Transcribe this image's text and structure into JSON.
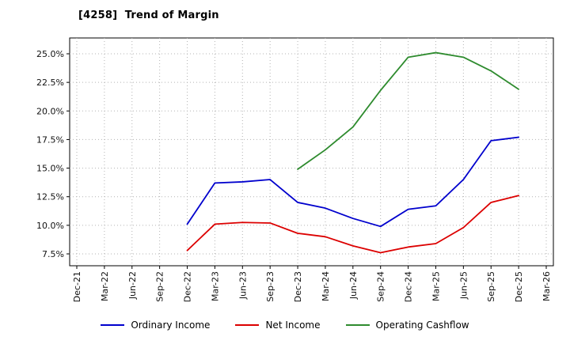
{
  "chart_data": {
    "type": "line",
    "title": "[4258]  Trend of Margin",
    "categories": [
      "Dec-21",
      "Mar-22",
      "Jun-22",
      "Sep-22",
      "Dec-22",
      "Mar-23",
      "Jun-23",
      "Sep-23",
      "Dec-23",
      "Mar-24",
      "Jun-24",
      "Sep-24",
      "Dec-24",
      "Mar-25",
      "Jun-25",
      "Sep-25",
      "Dec-25",
      "Mar-26"
    ],
    "y_ticks": [
      "7.5%",
      "10.0%",
      "12.5%",
      "15.0%",
      "17.5%",
      "20.0%",
      "22.5%",
      "25.0%"
    ],
    "y_tick_values": [
      7.5,
      10.0,
      12.5,
      15.0,
      17.5,
      20.0,
      22.5,
      25.0
    ],
    "ylim": [
      7.5,
      25.0
    ],
    "grid": true,
    "grid_style": "dotted",
    "legend_position": "bottom",
    "series": [
      {
        "name": "Ordinary Income",
        "color": "#0000cd",
        "x_start_index": 4,
        "values": [
          10.1,
          13.7,
          13.8,
          14.0,
          12.0,
          11.5,
          10.6,
          9.9,
          11.4,
          11.7,
          14.0,
          17.4,
          17.7
        ]
      },
      {
        "name": "Net Income",
        "color": "#dc0000",
        "x_start_index": 4,
        "values": [
          7.8,
          10.1,
          10.25,
          10.2,
          9.3,
          9.0,
          8.2,
          7.6,
          8.1,
          8.4,
          9.8,
          12.0,
          12.6
        ]
      },
      {
        "name": "Operating Cashflow",
        "color": "#2e8b2e",
        "x_start_index": 8,
        "values": [
          14.9,
          16.6,
          18.6,
          21.8,
          24.7,
          25.1,
          24.7,
          23.5,
          21.9
        ]
      }
    ]
  }
}
